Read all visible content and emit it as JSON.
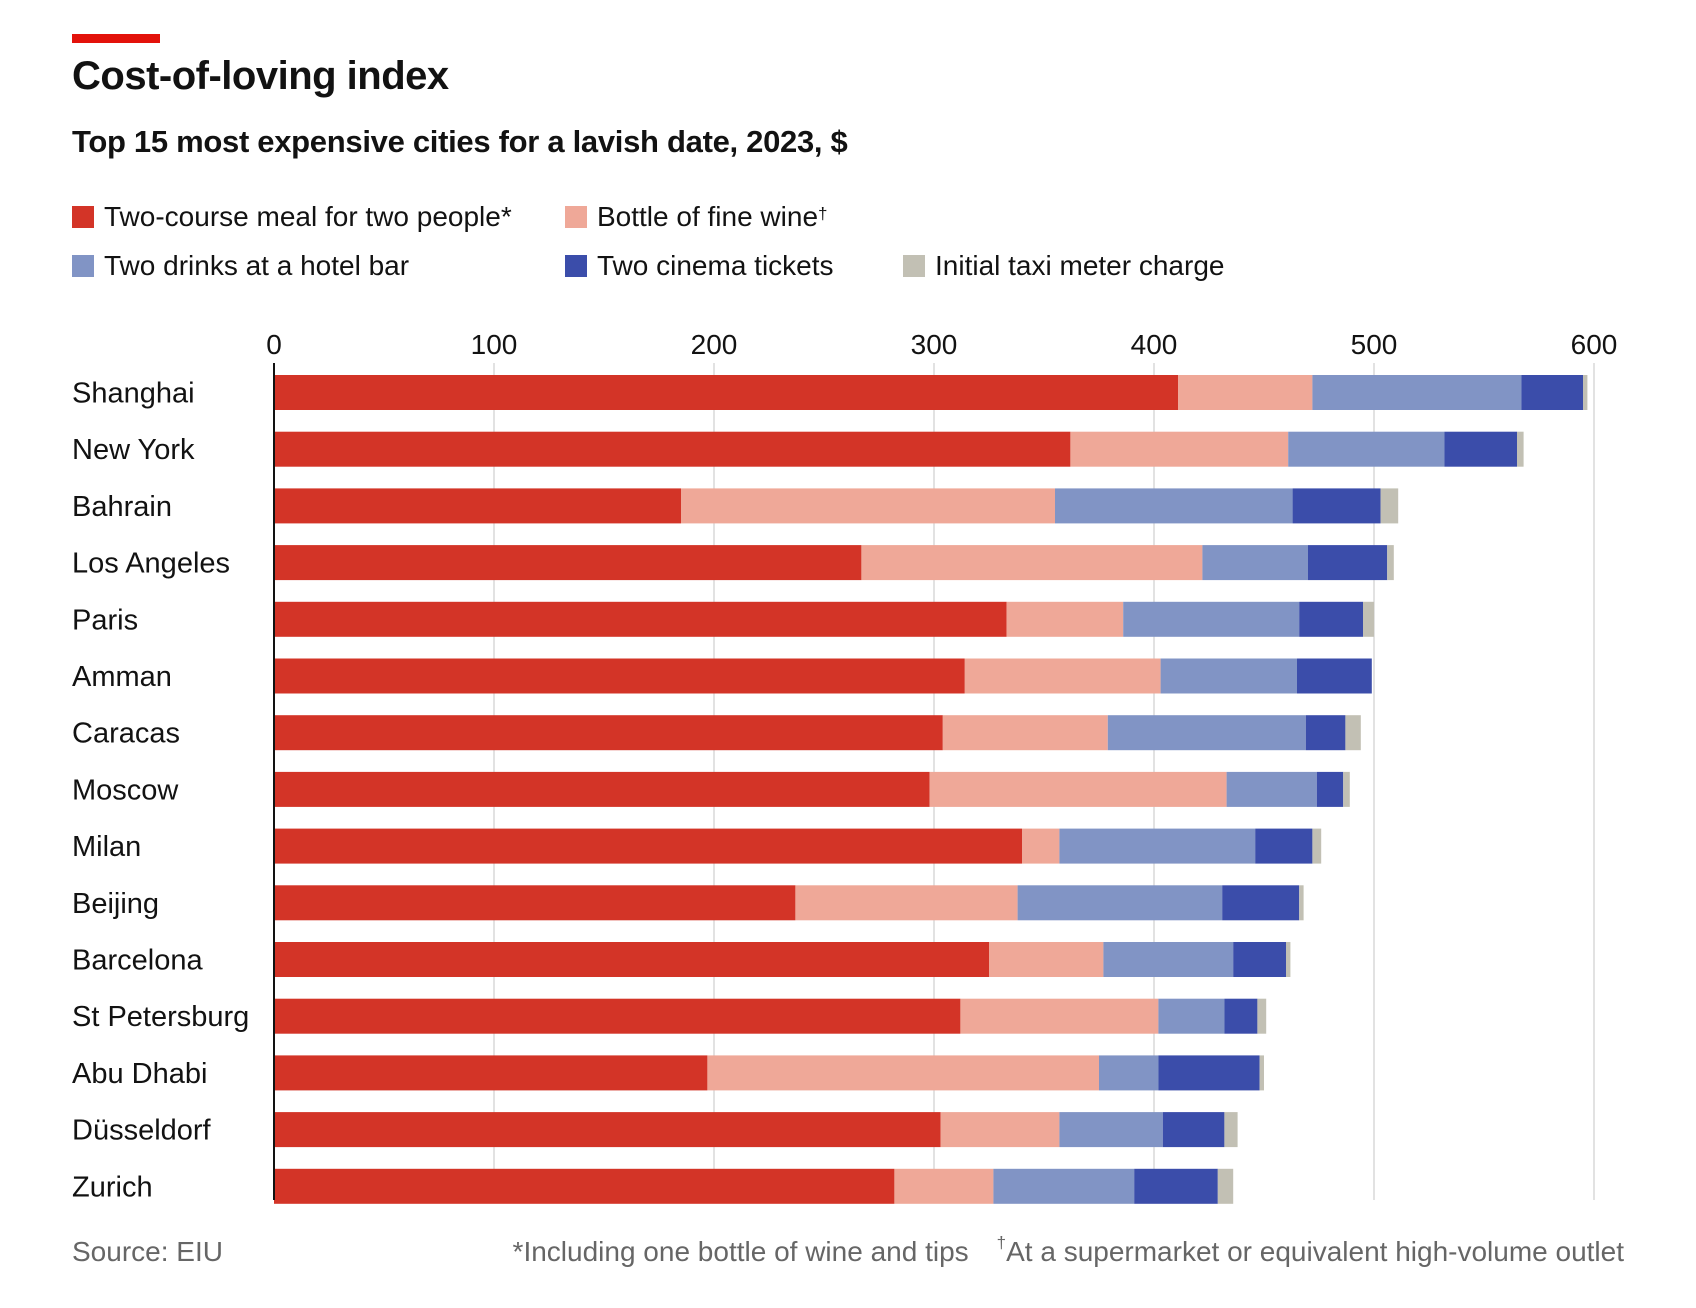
{
  "title": "Cost-of-loving index",
  "subtitle": "Top 15 most expensive cities for a lavish date, 2023, $",
  "legend": [
    {
      "label": "Two-course meal for two people*",
      "color": "#d33427"
    },
    {
      "label": "Bottle of fine wine",
      "sup": "†",
      "color": "#efa898"
    },
    {
      "label": "Two drinks at a hotel bar",
      "color": "#8194c5"
    },
    {
      "label": "Two cinema tickets",
      "color": "#3b4daa"
    },
    {
      "label": "Initial taxi meter charge",
      "color": "#c2c0b4"
    }
  ],
  "footer": {
    "source": "Source: EIU",
    "note1": "*Including one bottle of wine and tips",
    "note2_mark": "†",
    "note2": "At a supermarket or equivalent high-volume outlet"
  },
  "chart_data": {
    "type": "bar",
    "orientation": "horizontal",
    "stacked": true,
    "title": "Cost-of-loving index",
    "subtitle": "Top 15 most expensive cities for a lavish date, 2023, $",
    "xlim": [
      0,
      600
    ],
    "xticks": [
      0,
      100,
      200,
      300,
      400,
      500,
      600
    ],
    "grid": true,
    "categories": [
      "Shanghai",
      "New York",
      "Bahrain",
      "Los Angeles",
      "Paris",
      "Amman",
      "Caracas",
      "Moscow",
      "Milan",
      "Beijing",
      "Barcelona",
      "St Petersburg",
      "Abu Dhabi",
      "Düsseldorf",
      "Zurich"
    ],
    "series": [
      {
        "name": "Two-course meal for two people*",
        "color": "#d33427",
        "values": [
          411,
          362,
          185,
          267,
          333,
          314,
          304,
          298,
          340,
          237,
          325,
          312,
          197,
          303,
          282
        ]
      },
      {
        "name": "Bottle of fine wine†",
        "color": "#efa898",
        "values": [
          61,
          99,
          170,
          155,
          53,
          89,
          75,
          135,
          17,
          101,
          52,
          90,
          178,
          54,
          45
        ]
      },
      {
        "name": "Two drinks at a hotel bar",
        "color": "#8194c5",
        "values": [
          95,
          71,
          108,
          48,
          80,
          62,
          90,
          41,
          89,
          93,
          59,
          30,
          27,
          47,
          64
        ]
      },
      {
        "name": "Two cinema tickets",
        "color": "#3b4daa",
        "values": [
          28,
          33,
          40,
          36,
          29,
          34,
          18,
          12,
          26,
          35,
          24,
          15,
          46,
          28,
          38
        ]
      },
      {
        "name": "Initial taxi meter charge",
        "color": "#c2c0b4",
        "values": [
          2,
          3,
          8,
          3,
          5,
          0,
          7,
          3,
          4,
          2,
          2,
          4,
          2,
          6,
          7
        ]
      }
    ]
  }
}
